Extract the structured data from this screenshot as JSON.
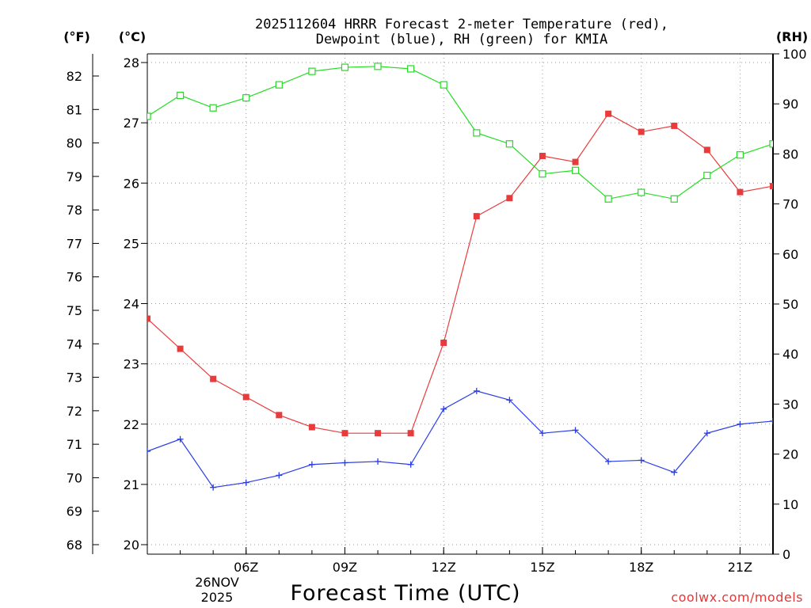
{
  "chart_data": {
    "type": "line",
    "title_line1": "2025112604 HRRR Forecast 2-meter Temperature (red),",
    "title_line2": "Dewpoint (blue), RH (green) for KMIA",
    "xlabel": "Forecast Time (UTC)",
    "x_hours": [
      3,
      4,
      5,
      6,
      7,
      8,
      9,
      10,
      11,
      12,
      13,
      14,
      15,
      16,
      17,
      18,
      19,
      20,
      21,
      22
    ],
    "xlim": [
      3,
      22
    ],
    "x_ticks": [
      {
        "hour": 6,
        "label": "06Z"
      },
      {
        "hour": 9,
        "label": "09Z"
      },
      {
        "hour": 12,
        "label": "12Z"
      },
      {
        "hour": 15,
        "label": "15Z"
      },
      {
        "hour": 18,
        "label": "18Z"
      },
      {
        "hour": 21,
        "label": "21Z"
      }
    ],
    "date_label_line1": "26NOV",
    "date_label_line2": "2025",
    "left_f_axis": {
      "unit": "(°F)",
      "range": [
        68,
        82.5
      ],
      "ticks": [
        68,
        69,
        70,
        71,
        72,
        73,
        74,
        75,
        76,
        77,
        78,
        79,
        80,
        81,
        82
      ]
    },
    "left_c_axis": {
      "unit": "(°C)",
      "range": [
        20,
        28.06
      ],
      "ticks": [
        20,
        21,
        22,
        23,
        24,
        25,
        26,
        27,
        28
      ]
    },
    "right_rh_axis": {
      "unit": "(RH)",
      "range": [
        0,
        100
      ],
      "ticks": [
        0,
        10,
        20,
        30,
        40,
        50,
        60,
        70,
        80,
        90,
        100
      ]
    },
    "series": [
      {
        "name": "2-meter Temperature",
        "unit": "C",
        "color": "#e83c3c",
        "marker": "filled-square",
        "values": [
          23.75,
          23.25,
          22.75,
          22.45,
          22.15,
          21.95,
          21.85,
          21.85,
          21.85,
          23.35,
          25.45,
          25.75,
          26.45,
          26.35,
          27.15,
          26.85,
          26.95,
          26.55,
          25.85,
          25.95
        ]
      },
      {
        "name": "Dewpoint",
        "unit": "C",
        "color": "#2a3de8",
        "marker": "plus",
        "values": [
          21.55,
          21.75,
          20.95,
          21.03,
          21.15,
          21.33,
          21.36,
          21.38,
          21.33,
          22.25,
          22.55,
          22.4,
          21.85,
          21.9,
          21.38,
          21.4,
          21.2,
          21.85,
          22.0,
          22.05
        ]
      },
      {
        "name": "RH",
        "unit": "%",
        "color": "#22dd22",
        "marker": "open-square",
        "values": [
          87.5,
          91.7,
          89.2,
          91.2,
          93.8,
          96.5,
          97.3,
          97.5,
          97.0,
          93.8,
          84.2,
          82.0,
          76.0,
          76.7,
          71.0,
          72.3,
          71.0,
          75.7,
          79.8,
          82.0
        ]
      }
    ],
    "credit": "coolwx.com/models"
  },
  "colors": {
    "temperature": "#e83c3c",
    "dewpoint": "#2a3de8",
    "rh": "#22dd22",
    "grid": "#999999"
  }
}
